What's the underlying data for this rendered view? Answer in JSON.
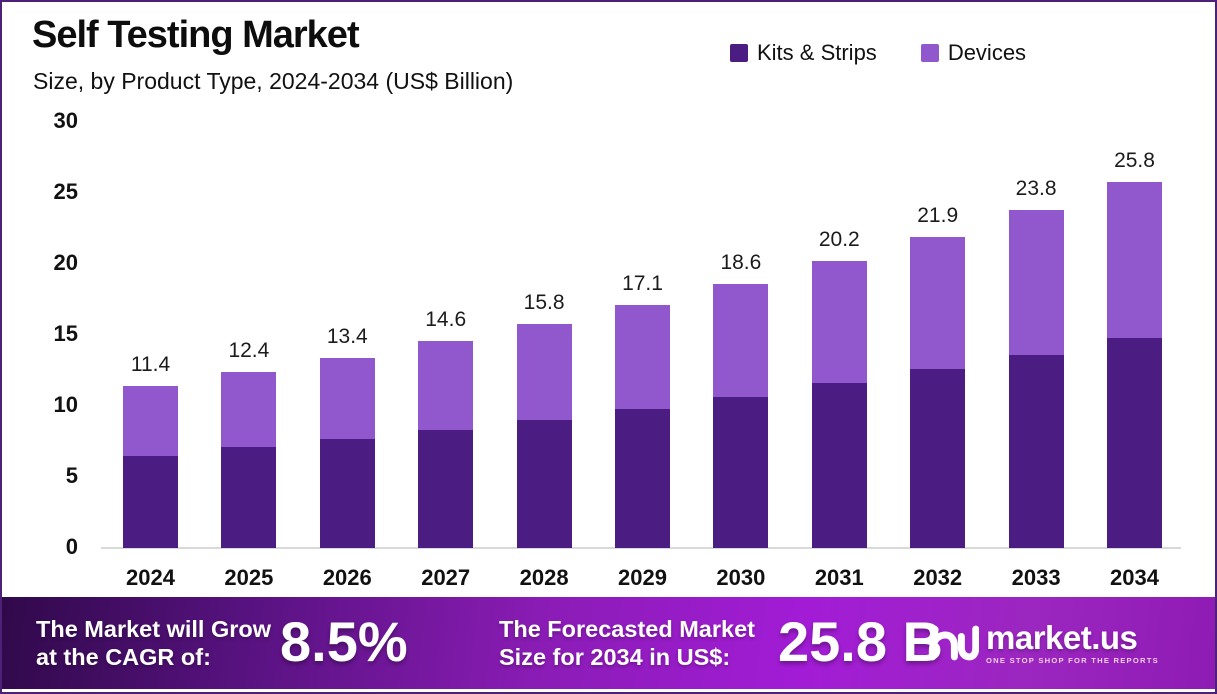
{
  "header": {
    "title": "Self Testing Market",
    "subtitle": "Size, by Product Type, 2024-2034 (US$ Billion)"
  },
  "legend": [
    {
      "label": "Kits & Strips",
      "color": "#4B1C82"
    },
    {
      "label": "Devices",
      "color": "#9158CE"
    }
  ],
  "colors": {
    "kits_strips": "#4B1C82",
    "devices": "#9158CE",
    "frame_border": "#4C2177",
    "baseline": "#D9D9D9",
    "banner_dark": "#30094A",
    "banner_bright": "#A21CD6",
    "text": "#111111"
  },
  "chart_data": {
    "type": "bar",
    "stacked": true,
    "title": "Self Testing Market",
    "subtitle": "Size, by Product Type, 2024-2034 (US$ Billion)",
    "xlabel": "",
    "ylabel": "US$ Billion",
    "ylim": [
      0,
      30
    ],
    "yticks": [
      0,
      5,
      10,
      15,
      20,
      25,
      30
    ],
    "grid": false,
    "legend_position": "top-right",
    "categories": [
      "2024",
      "2025",
      "2026",
      "2027",
      "2028",
      "2029",
      "2030",
      "2031",
      "2032",
      "2033",
      "2034"
    ],
    "series": [
      {
        "name": "Kits & Strips",
        "color": "#4B1C82",
        "values": [
          6.5,
          7.1,
          7.7,
          8.3,
          9.0,
          9.8,
          10.6,
          11.6,
          12.6,
          13.6,
          14.8
        ]
      },
      {
        "name": "Devices",
        "color": "#9158CE",
        "values": [
          4.9,
          5.3,
          5.7,
          6.3,
          6.8,
          7.3,
          8.0,
          8.6,
          9.3,
          10.2,
          11.0
        ]
      }
    ],
    "totals": [
      11.4,
      12.4,
      13.4,
      14.6,
      15.8,
      17.1,
      18.6,
      20.2,
      21.9,
      23.8,
      25.8
    ]
  },
  "footer": {
    "cagr_label_line1": "The Market will Grow",
    "cagr_label_line2": "at the CAGR of:",
    "cagr_value": "8.5%",
    "forecast_label_line1": "The Forecasted Market",
    "forecast_label_line2": "Size for 2034 in US$:",
    "forecast_value": "25.8 B",
    "brand": "market.us",
    "brand_tagline": "ONE STOP SHOP FOR THE REPORTS"
  }
}
